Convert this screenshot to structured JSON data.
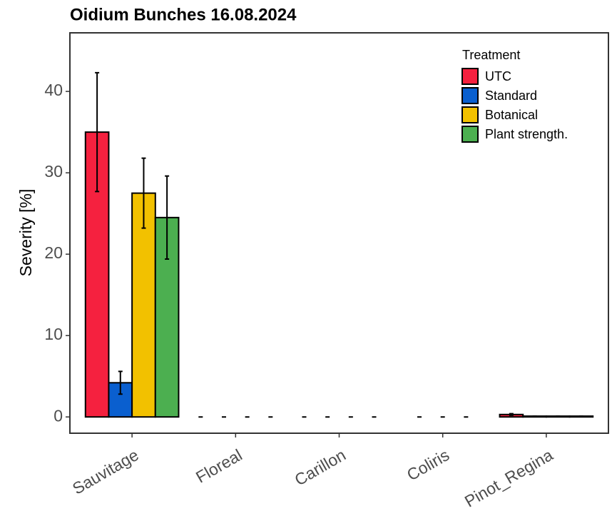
{
  "chart_data": {
    "type": "bar",
    "title": "Oidium Bunches 16.08.2024",
    "y_label": "Severity [%]",
    "categories": [
      "Sauvitage",
      "Floreal",
      "Carillon",
      "Coliris",
      "Pinot_Regina"
    ],
    "legend_title": "Treatment",
    "legend_position": "top-right",
    "series": [
      {
        "name": "UTC",
        "color": "#f5213f",
        "values": [
          35,
          0,
          0,
          0,
          0.3
        ],
        "errors": [
          7.3,
          0,
          0,
          0,
          0.1
        ]
      },
      {
        "name": "Standard",
        "color": "#0a5fcf",
        "values": [
          4.2,
          0,
          0,
          0,
          0.1
        ],
        "errors": [
          1.4,
          0,
          0,
          0,
          0
        ]
      },
      {
        "name": "Botanical",
        "color": "#f2c100",
        "values": [
          27.5,
          0,
          0,
          0,
          0.1
        ],
        "errors": [
          4.3,
          0,
          0,
          0,
          0
        ]
      },
      {
        "name": "Plant strength.",
        "color": "#4caf50",
        "values": [
          24.5,
          0,
          0,
          null,
          0.1
        ],
        "errors": [
          5.1,
          0,
          0,
          null,
          0
        ]
      }
    ],
    "ylim": [
      -2,
      47.2
    ],
    "yticks": [
      0,
      10,
      20,
      30,
      40
    ],
    "grid": false
  }
}
